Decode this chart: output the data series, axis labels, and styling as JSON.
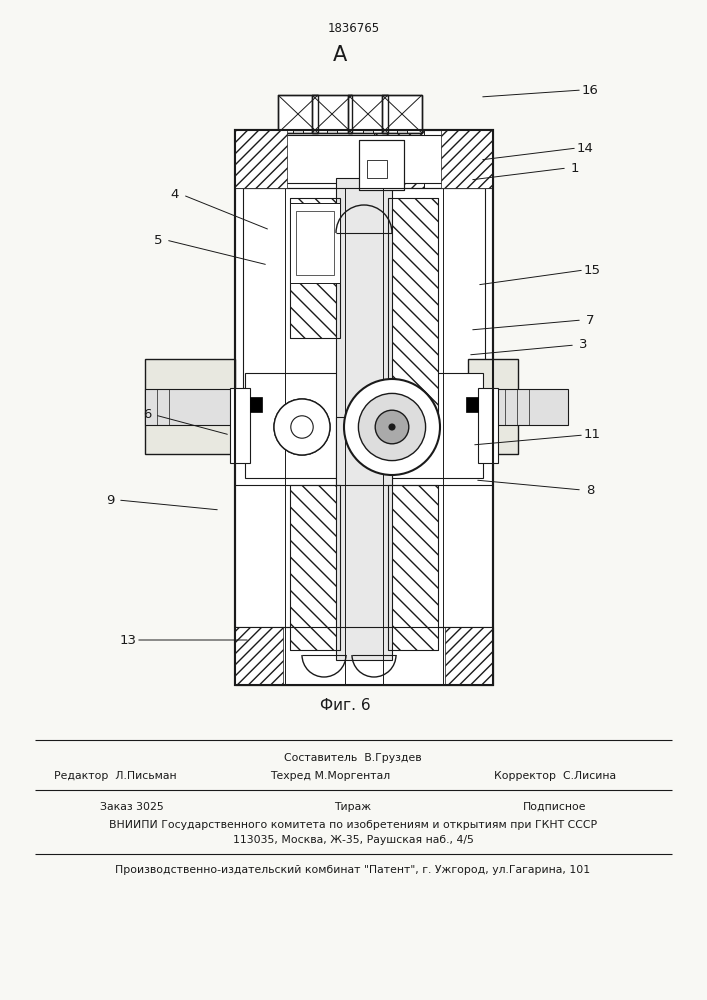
{
  "patent_number": "1836765",
  "view_label": "А",
  "figure_label": "Фиг. 6",
  "bg_color": "#f8f8f4",
  "line_color": "#1a1a1a",
  "header_line1": "Составитель  В.Груздев",
  "header_line2_left": "Редактор  Л.Письман",
  "header_line2_mid": "Техред М.Моргентал",
  "header_line2_right": "Корректор  С.Лисина",
  "footer_line1_left": "Заказ 3025",
  "footer_line1_mid": "Тираж",
  "footer_line1_right": "Подписное",
  "footer_line2": "ВНИИПИ Государственного комитета по изобретениям и открытиям при ГКНТ СССР",
  "footer_line3": "113035, Москва, Ж-35, Раушская наб., 4/5",
  "footer_line4": "Производственно-издательский комбинат \"Патент\", г. Ужгород, ул.Гагарина, 101"
}
